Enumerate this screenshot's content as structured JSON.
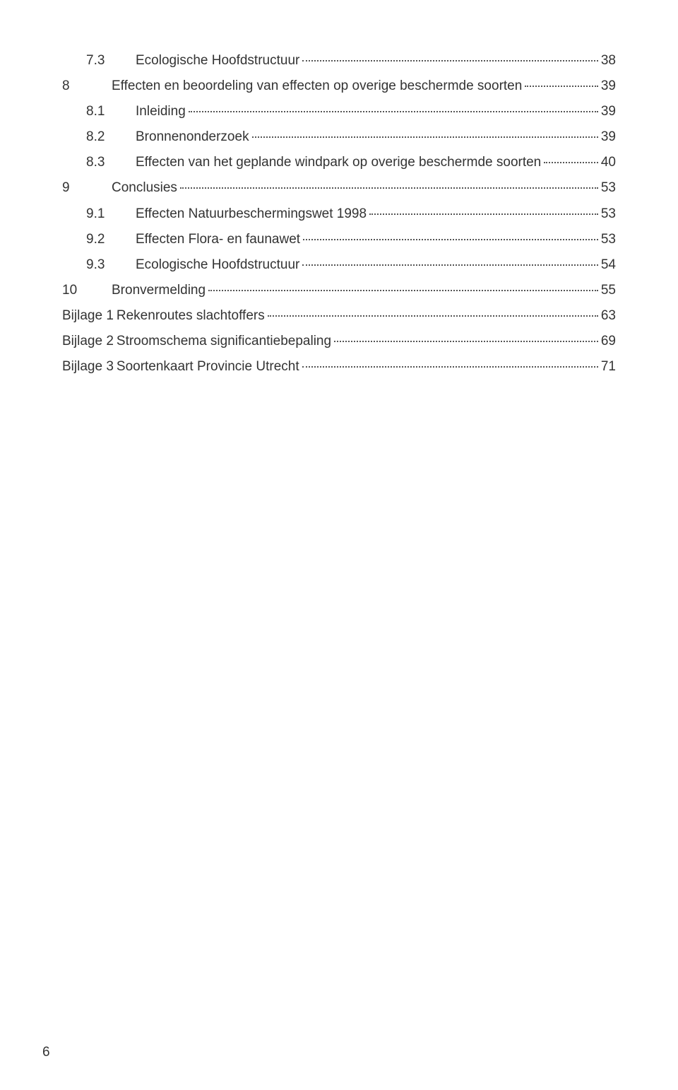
{
  "toc": {
    "entries": [
      {
        "level": 2,
        "num": "7.3",
        "title": "Ecologische Hoofdstructuur",
        "page": "38"
      },
      {
        "level": 1,
        "num": "8",
        "title": "Effecten en beoordeling van effecten op overige beschermde soorten",
        "page": "39"
      },
      {
        "level": 2,
        "num": "8.1",
        "title": "Inleiding",
        "page": "39"
      },
      {
        "level": 2,
        "num": "8.2",
        "title": "Bronnenonderzoek",
        "page": "39"
      },
      {
        "level": 2,
        "num": "8.3",
        "title": "Effecten van het geplande windpark op overige beschermde soorten",
        "page": "40"
      },
      {
        "level": 1,
        "num": "9",
        "title": "Conclusies",
        "page": "53"
      },
      {
        "level": 2,
        "num": "9.1",
        "title": "Effecten Natuurbeschermingswet 1998",
        "page": "53"
      },
      {
        "level": 2,
        "num": "9.2",
        "title": "Effecten Flora- en faunawet",
        "page": "53"
      },
      {
        "level": 2,
        "num": "9.3",
        "title": "Ecologische Hoofdstructuur",
        "page": "54"
      },
      {
        "level": 1,
        "num": "10",
        "title": "Bronvermelding",
        "page": "55"
      },
      {
        "level": 0,
        "num": "Bijlage 1",
        "title": "Rekenroutes slachtoffers",
        "page": "63"
      },
      {
        "level": 0,
        "num": "Bijlage 2",
        "title": "Stroomschema significantiebepaling",
        "page": "69"
      },
      {
        "level": 0,
        "num": "Bijlage 3",
        "title": "Soortenkaart Provincie Utrecht",
        "page": "71"
      }
    ]
  },
  "footer": {
    "pageNumber": "6"
  },
  "style": {
    "fontSizePt": 19,
    "textColor": "#333333",
    "dotColor": "#555555",
    "background": "#ffffff"
  }
}
